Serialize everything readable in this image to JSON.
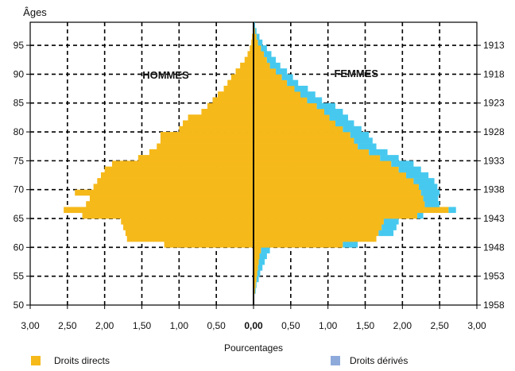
{
  "chart_data": {
    "type": "bar",
    "orientation": "horizontal",
    "subtype": "population-pyramid",
    "title": "",
    "y_axis_label": "Âges",
    "x_axis_label": "Pourcentages",
    "left_panel_label": "HOMMES",
    "right_panel_label": "FEMMES",
    "xlim": [
      -3.0,
      3.0
    ],
    "ylim": [
      50,
      99
    ],
    "x_tick_labels": [
      "3,00",
      "2,50",
      "2,00",
      "1,50",
      "1,00",
      "0,50",
      "0,00",
      "0,50",
      "1,00",
      "1,50",
      "2,00",
      "2,50",
      "3,00"
    ],
    "age_ticks": [
      50,
      55,
      60,
      65,
      70,
      75,
      80,
      85,
      90,
      95
    ],
    "birth_year_ticks": [
      "1958",
      "1953",
      "1948",
      "1943",
      "1938",
      "1933",
      "1928",
      "1923",
      "1918",
      "1913"
    ],
    "grid": true,
    "legend_position": "bottom",
    "legend": [
      {
        "label": "Droits directs",
        "color": "#f6b91a"
      },
      {
        "label": "Droits dérivés",
        "color": "#8eaadb"
      }
    ],
    "colors": {
      "direct": "#f6b91a",
      "derived": "#47c9ef",
      "axis": "#000000"
    },
    "ages": [
      52,
      53,
      54,
      55,
      56,
      57,
      58,
      59,
      60,
      61,
      62,
      63,
      64,
      65,
      66,
      67,
      68,
      69,
      70,
      71,
      72,
      73,
      74,
      75,
      76,
      77,
      78,
      79,
      80,
      81,
      82,
      83,
      84,
      85,
      86,
      87,
      88,
      89,
      90,
      91,
      92,
      93,
      94,
      95,
      96,
      97,
      98
    ],
    "series": [
      {
        "name": "Hommes Droits directs",
        "values": [
          0,
          0,
          0,
          0,
          0,
          0,
          0,
          0,
          1.2,
          1.7,
          1.72,
          1.75,
          1.78,
          2.3,
          2.55,
          2.25,
          2.2,
          2.4,
          2.15,
          2.1,
          2.05,
          2.0,
          1.9,
          1.55,
          1.4,
          1.3,
          1.25,
          1.25,
          1.0,
          0.95,
          0.88,
          0.7,
          0.62,
          0.55,
          0.48,
          0.4,
          0.35,
          0.3,
          0.24,
          0.18,
          0.12,
          0.08,
          0.05,
          0.03,
          0.02,
          0.01,
          0.005
        ]
      },
      {
        "name": "Hommes Droits dérivés",
        "values": [
          0,
          0,
          0,
          0,
          0,
          0,
          0,
          0,
          0,
          0,
          0,
          0,
          0,
          0,
          0,
          0,
          0,
          0,
          0,
          0,
          0,
          0,
          0,
          0,
          0,
          0,
          0,
          0,
          0,
          0,
          0,
          0,
          0,
          0,
          0,
          0,
          0,
          0,
          0,
          0,
          0,
          0,
          0,
          0,
          0,
          0,
          0
        ]
      },
      {
        "name": "Femmes Droits directs",
        "values": [
          0.02,
          0.03,
          0.04,
          0.05,
          0.06,
          0.07,
          0.08,
          0.1,
          1.2,
          1.65,
          1.68,
          1.72,
          1.75,
          2.2,
          2.62,
          2.3,
          2.28,
          2.25,
          2.22,
          2.15,
          2.05,
          1.95,
          1.85,
          1.7,
          1.55,
          1.4,
          1.35,
          1.3,
          1.2,
          1.1,
          1.02,
          0.95,
          0.85,
          0.72,
          0.63,
          0.55,
          0.45,
          0.38,
          0.3,
          0.22,
          0.18,
          0.14,
          0.1,
          0.06,
          0.04,
          0.02,
          0.01
        ]
      },
      {
        "name": "Femmes Droits dérivés",
        "values": [
          0.01,
          0.01,
          0.03,
          0.04,
          0.06,
          0.08,
          0.1,
          0.12,
          0.2,
          0.0,
          0.2,
          0.2,
          0.2,
          0.08,
          0.1,
          0.2,
          0.2,
          0.25,
          0.25,
          0.28,
          0.3,
          0.3,
          0.3,
          0.25,
          0.25,
          0.25,
          0.25,
          0.25,
          0.25,
          0.25,
          0.25,
          0.25,
          0.25,
          0.2,
          0.2,
          0.18,
          0.15,
          0.15,
          0.15,
          0.14,
          0.12,
          0.1,
          0.08,
          0.06,
          0.04,
          0.02,
          0.01
        ]
      }
    ]
  }
}
